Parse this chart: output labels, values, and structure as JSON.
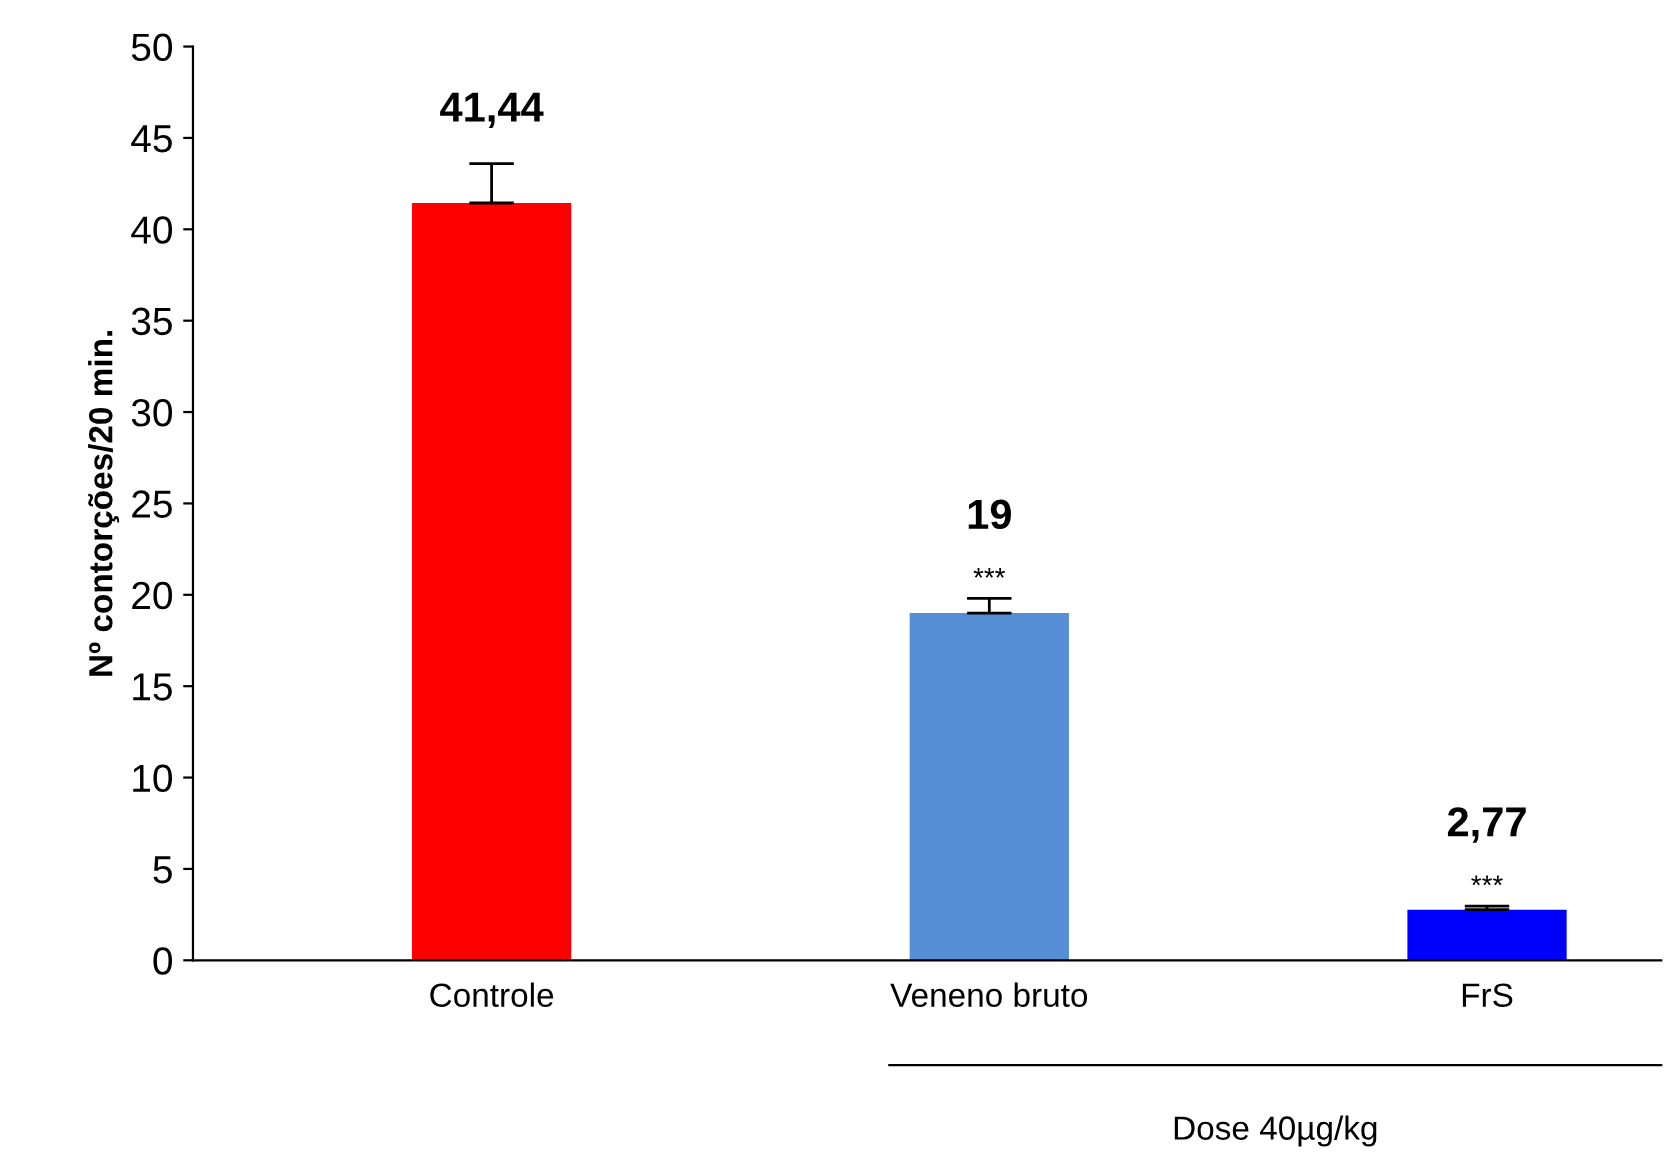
{
  "chart_data": {
    "type": "bar",
    "ylabel": "Nº contorções/20 min.",
    "categories": [
      "Controle",
      "Veneno bruto",
      "FrS"
    ],
    "values": [
      41.44,
      19,
      2.77
    ],
    "colors": [
      "#ff0000",
      "#558ed5",
      "#0000ff"
    ],
    "errors": [
      [
        41.44,
        43.6
      ],
      [
        19,
        19.8
      ],
      [
        2.77,
        2.97
      ]
    ],
    "value_labels": [
      "41,44",
      "19",
      "2,77"
    ],
    "ylim": [
      0,
      50
    ],
    "yticks": [
      0,
      5,
      10,
      15,
      20,
      25,
      30,
      35,
      40,
      45,
      50
    ],
    "grid": false,
    "legend": false,
    "annotations": [
      "***",
      "***",
      "Dose 40µg/kg"
    ]
  }
}
